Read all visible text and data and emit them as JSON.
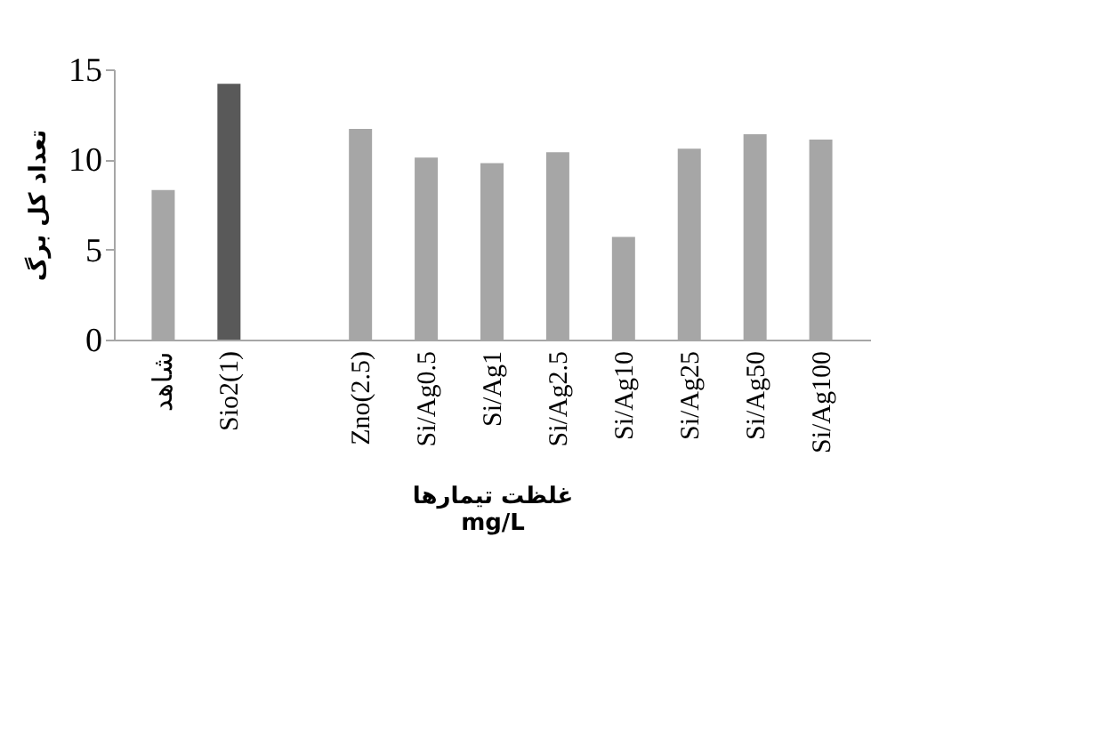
{
  "chart_data": {
    "type": "bar",
    "categories": [
      "شاهد",
      "Sio2(1)",
      null,
      "Zno(2.5)",
      "Si/Ag0.5",
      "Si/Ag1",
      "Si/Ag2.5",
      "Si/Ag10",
      "Si/Ag25",
      "Si/Ag50",
      "Si/Ag100"
    ],
    "values": [
      8.3,
      14.2,
      null,
      11.7,
      10.1,
      9.8,
      10.4,
      5.7,
      10.6,
      11.4,
      11.1
    ],
    "colors": [
      "#a6a6a6",
      "#595959",
      "#a6a6a6",
      "#a6a6a6",
      "#a6a6a6",
      "#a6a6a6",
      "#a6a6a6",
      "#a6a6a6",
      "#a6a6a6",
      "#a6a6a6",
      "#a6a6a6"
    ],
    "xlabel": "غلظت تیمارها\nmg/L",
    "ylabel": "تعداد کل برگ",
    "ylim": [
      0,
      15
    ],
    "yticks": [
      0,
      5,
      10,
      15
    ],
    "grid": false
  }
}
